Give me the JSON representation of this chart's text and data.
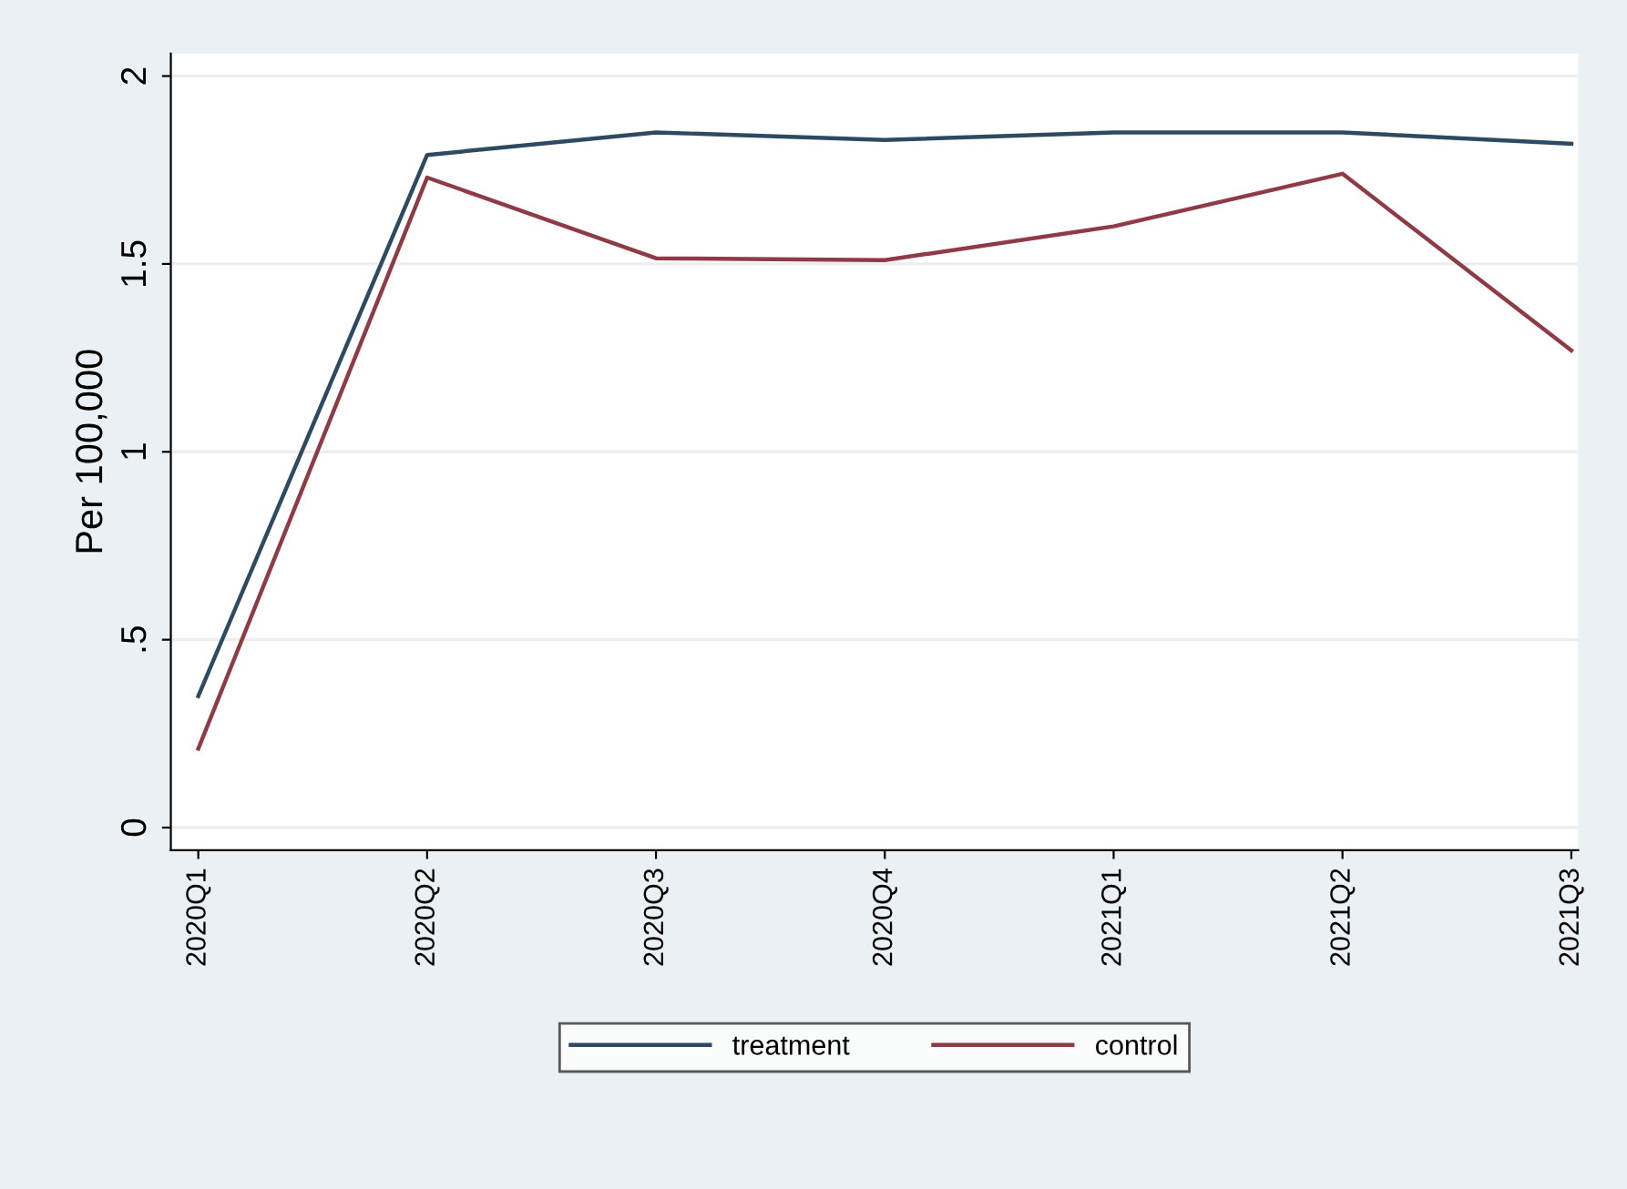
{
  "chart_data": {
    "type": "line",
    "ylabel": "Per 100,000",
    "categories": [
      "2020Q1",
      "2020Q2",
      "2020Q3",
      "2020Q4",
      "2021Q1",
      "2021Q2",
      "2021Q3"
    ],
    "series": [
      {
        "name": "treatment",
        "color": "#2e4a62",
        "values": [
          0.35,
          1.79,
          1.85,
          1.83,
          1.85,
          1.85,
          1.82
        ]
      },
      {
        "name": "control",
        "color": "#8f3b46",
        "values": [
          0.21,
          1.73,
          1.515,
          1.51,
          1.6,
          1.74,
          1.27
        ]
      }
    ],
    "ylim": [
      -0.06,
      2.06
    ],
    "yticks": [
      0,
      {
        "value": 0.5,
        "label": ".5"
      },
      1,
      1.5,
      2
    ],
    "grid": "y",
    "legend": "bottom",
    "marker": "none",
    "line_style": "solid"
  }
}
